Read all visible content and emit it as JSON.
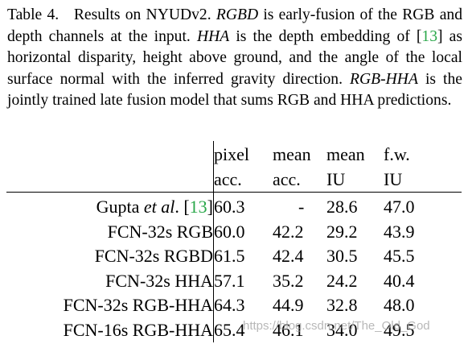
{
  "caption": {
    "label": "Table 4.",
    "text1": "Results on NYUDv2.",
    "rgbd": "RGBD",
    "text2": "is early-fusion of the RGB and depth channels at the input.",
    "hha": "HHA",
    "text3": "is the depth embedding of [",
    "ref": "13",
    "text4": "] as horizontal disparity, height above ground, and the angle of the local surface normal with the inferred gravity direction.",
    "rgbhha": "RGB-HHA",
    "text5": "is the jointly trained late fusion model that sums RGB and HHA predictions."
  },
  "table": {
    "headers": {
      "row1": [
        "pixel",
        "mean",
        "mean",
        "f.w."
      ],
      "row2": [
        "acc.",
        "acc.",
        "IU",
        "IU"
      ]
    },
    "rows": [
      {
        "method_pre": "Gupta ",
        "method_em": "et al",
        "method_post": ". [",
        "method_ref": "13",
        "method_close": "]",
        "values": [
          "60.3",
          "-",
          "28.6",
          "47.0"
        ]
      },
      {
        "method": "FCN-32s RGB",
        "values": [
          "60.0",
          "42.2",
          "29.2",
          "43.9"
        ]
      },
      {
        "method": "FCN-32s RGBD",
        "values": [
          "61.5",
          "42.4",
          "30.5",
          "45.5"
        ]
      },
      {
        "method": "FCN-32s HHA",
        "values": [
          "57.1",
          "35.2",
          "24.2",
          "40.4"
        ]
      },
      {
        "method": "FCN-32s RGB-HHA",
        "values": [
          "64.3",
          "44.9",
          "32.8",
          "48.0"
        ]
      },
      {
        "method": "FCN-16s RGB-HHA",
        "values": [
          "65.4",
          "46.1",
          "34.0",
          "49.5"
        ]
      }
    ]
  },
  "colors": {
    "ref": "#2aa84a"
  },
  "watermark": "https://blog.csdn.net/The_Old_God"
}
